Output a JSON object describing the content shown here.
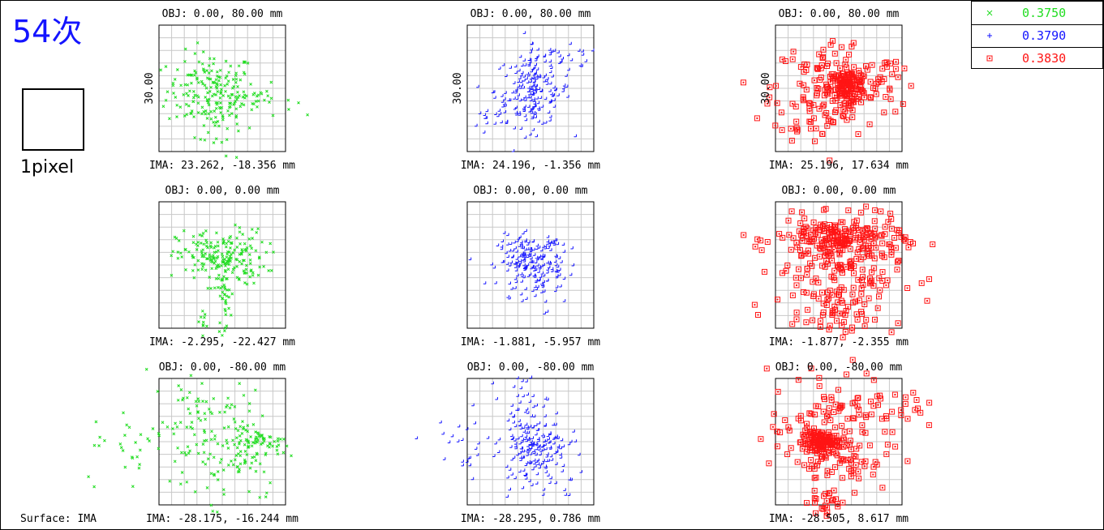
{
  "header": {
    "title": "54次",
    "pixel_label": "1pixel",
    "surface_label": "Surface: IMA"
  },
  "legend": [
    {
      "label": "0.3750",
      "color": "#22dd22",
      "marker": "x"
    },
    {
      "label": "0.3790",
      "color": "#1414ff",
      "marker": "+"
    },
    {
      "label": "0.3830",
      "color": "#ff1414",
      "marker": "square"
    }
  ],
  "chart_data": {
    "type": "scatter",
    "scale_bar_label": "30.00",
    "fields": [
      {
        "obj": "OBJ: 0.00, 80.00 mm",
        "ima": "IMA: 23.262, -18.356 mm",
        "wave": 0,
        "show_scale": true,
        "clusters": [
          [
            -0.15,
            -0.05,
            0.35,
            0.3,
            170
          ],
          [
            0.55,
            -0.2,
            0.3,
            0.12,
            30
          ],
          [
            -0.05,
            -0.55,
            0.18,
            0.35,
            30
          ]
        ]
      },
      {
        "obj": "OBJ: 0.00, 80.00 mm",
        "ima": "IMA: 24.196, -1.356 mm",
        "wave": 1,
        "show_scale": true,
        "clusters": [
          [
            0.05,
            -0.05,
            0.3,
            0.28,
            150
          ],
          [
            0.05,
            -0.15,
            0.04,
            0.4,
            40
          ],
          [
            0.55,
            0.45,
            0.3,
            0.1,
            25
          ],
          [
            -0.45,
            -0.45,
            0.25,
            0.15,
            20
          ]
        ]
      },
      {
        "obj": "OBJ: 0.00, 80.00 mm",
        "ima": "IMA: 25.196, 17.634 mm",
        "wave": 2,
        "show_scale": true,
        "clusters": [
          [
            0.15,
            0.05,
            0.15,
            0.12,
            110
          ],
          [
            -0.05,
            0.0,
            0.5,
            0.4,
            140
          ],
          [
            -0.45,
            -0.45,
            0.2,
            0.2,
            20
          ],
          [
            0.75,
            0.2,
            0.15,
            0.2,
            10
          ]
        ]
      },
      {
        "obj": "OBJ: 0.00, 0.00 mm",
        "ima": "IMA: -2.295, -22.427 mm",
        "wave": 0,
        "show_scale": false,
        "clusters": [
          [
            0.0,
            0.1,
            0.35,
            0.22,
            200
          ],
          [
            0.05,
            -0.5,
            0.05,
            0.3,
            40
          ],
          [
            -0.3,
            -0.9,
            0.08,
            0.1,
            10
          ]
        ]
      },
      {
        "obj": "OBJ: 0.00, 0.00 mm",
        "ima": "IMA: -1.881, -5.957 mm",
        "wave": 1,
        "show_scale": false,
        "clusters": [
          [
            0.0,
            0.05,
            0.25,
            0.2,
            170
          ],
          [
            0.25,
            -0.3,
            0.15,
            0.2,
            30
          ],
          [
            0.4,
            0.3,
            0.1,
            0.06,
            15
          ]
        ]
      },
      {
        "obj": "OBJ: 0.00, 0.00 mm",
        "ima": "IMA: -1.877, -2.355 mm",
        "wave": 2,
        "show_scale": false,
        "clusters": [
          [
            0.0,
            0.4,
            0.5,
            0.18,
            180
          ],
          [
            0.0,
            -0.1,
            0.5,
            0.45,
            160
          ],
          [
            0.05,
            -0.8,
            0.3,
            0.2,
            30
          ]
        ]
      },
      {
        "obj": "OBJ: 0.00, -80.00 mm",
        "ima": "IMA: -28.175, -16.244 mm",
        "wave": 0,
        "show_scale": false,
        "clusters": [
          [
            0.1,
            -0.05,
            0.45,
            0.45,
            150
          ],
          [
            0.65,
            0.0,
            0.2,
            0.08,
            40
          ],
          [
            -1.35,
            -0.1,
            0.4,
            0.3,
            30
          ],
          [
            -0.5,
            0.6,
            0.2,
            0.25,
            25
          ]
        ]
      },
      {
        "obj": "OBJ: 0.00, -80.00 mm",
        "ima": "IMA: -28.295, 0.786 mm",
        "wave": 1,
        "show_scale": false,
        "clusters": [
          [
            0.1,
            -0.05,
            0.25,
            0.2,
            130
          ],
          [
            -0.1,
            0.45,
            0.2,
            0.3,
            50
          ],
          [
            0.25,
            -0.55,
            0.3,
            0.2,
            40
          ],
          [
            -1.05,
            -0.05,
            0.3,
            0.3,
            25
          ]
        ]
      },
      {
        "obj": "OBJ: 0.00, -80.00 mm",
        "ima": "IMA: -28.505, 8.617 mm",
        "wave": 2,
        "show_scale": false,
        "clusters": [
          [
            -0.3,
            -0.02,
            0.15,
            0.1,
            130
          ],
          [
            -0.1,
            0.1,
            0.5,
            0.5,
            140
          ],
          [
            0.95,
            0.6,
            0.2,
            0.2,
            20
          ],
          [
            -0.2,
            -0.85,
            0.12,
            0.25,
            25
          ]
        ]
      }
    ]
  }
}
